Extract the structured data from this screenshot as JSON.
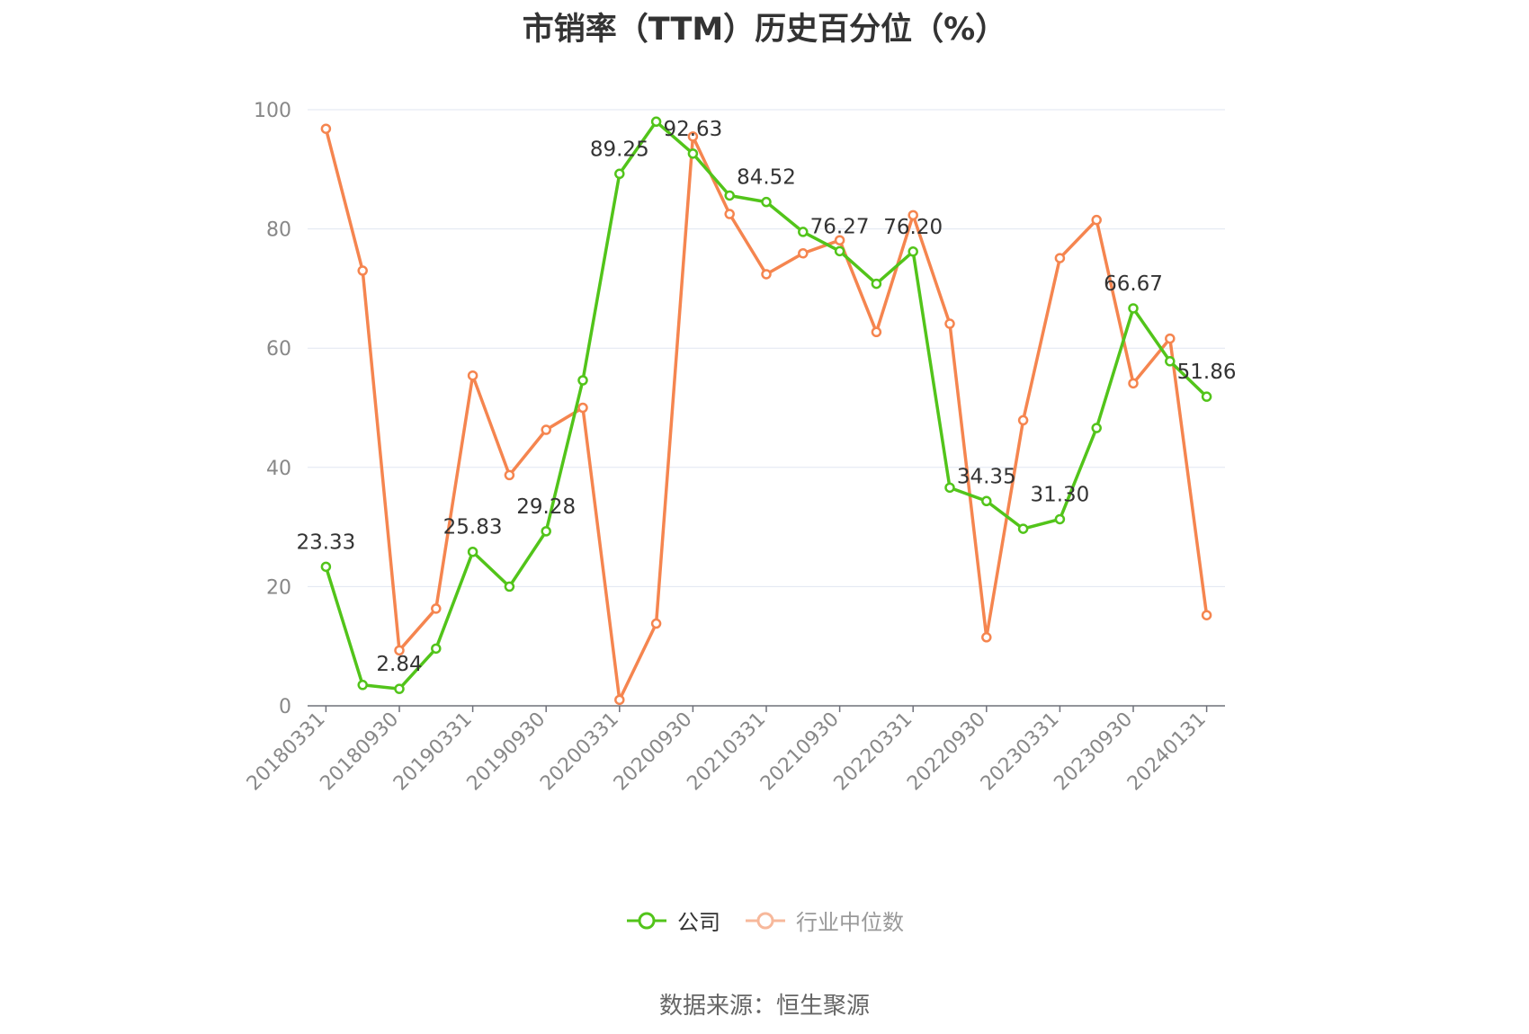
{
  "title": "市销率（TTM）历史百分位（%）",
  "source": "数据来源：恒生聚源",
  "chart_data": {
    "type": "line",
    "title": "市销率（TTM）历史百分位（%）",
    "ylim": [
      0,
      100
    ],
    "y_ticks": [
      "0",
      "20",
      "40",
      "60",
      "80",
      "100"
    ],
    "x_tick_labels": [
      "20180331",
      "20180930",
      "20190331",
      "20190930",
      "20200331",
      "20200930",
      "20210331",
      "20210930",
      "20220331",
      "20220930",
      "20230331",
      "20230930",
      "20240131"
    ],
    "x": [
      "20180331",
      "20180630",
      "20180930",
      "20181231",
      "20190331",
      "20190630",
      "20190930",
      "20191231",
      "20200331",
      "20200630",
      "20200930",
      "20201231",
      "20210331",
      "20210630",
      "20210930",
      "20211231",
      "20220331",
      "20220630",
      "20220930",
      "20221231",
      "20230331",
      "20230630",
      "20230930",
      "20231231",
      "20240131"
    ],
    "grid": true,
    "legend_position": "bottom",
    "series": [
      {
        "name": "公司",
        "color": "#52c41a",
        "values": [
          23.33,
          3.5,
          2.84,
          9.6,
          25.83,
          20.0,
          29.28,
          54.6,
          89.25,
          98.0,
          92.63,
          85.6,
          84.52,
          79.5,
          76.27,
          70.8,
          76.2,
          36.6,
          34.35,
          29.7,
          31.3,
          46.6,
          66.67,
          57.8,
          51.86
        ],
        "labels": [
          "23.33",
          "",
          "2.84",
          "",
          "25.83",
          "",
          "29.28",
          "",
          "89.25",
          "",
          "92.63",
          "",
          "84.52",
          "",
          "76.27",
          "",
          "76.20",
          "",
          "34.35",
          "",
          "31.30",
          "",
          "66.67",
          "",
          "51.86"
        ]
      },
      {
        "name": "行业中位数",
        "color": "#f5854f",
        "values": [
          96.8,
          73.0,
          9.3,
          16.3,
          55.4,
          38.7,
          46.3,
          50.0,
          1.0,
          13.8,
          95.5,
          82.5,
          72.4,
          75.9,
          78.1,
          62.7,
          82.3,
          64.1,
          11.5,
          47.9,
          75.1,
          81.5,
          54.1,
          61.6,
          15.2
        ]
      }
    ]
  }
}
